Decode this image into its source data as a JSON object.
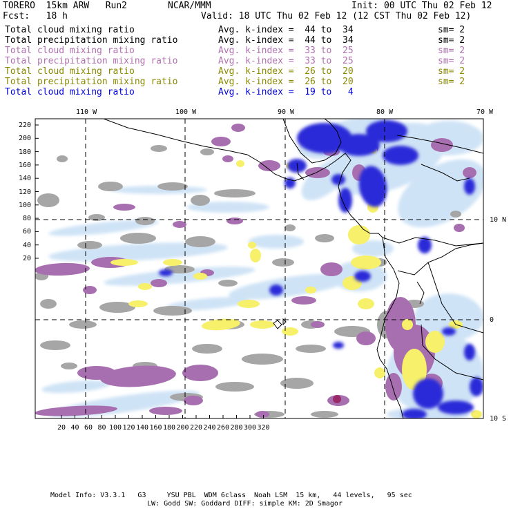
{
  "header": {
    "model": "TORERO  15km ARW   Run2",
    "org": "NCAR/MMM",
    "init": "Init: 00 UTC Thu 02 Feb 12",
    "fcst": "Fcst:   18 h",
    "valid": "Valid: 18 UTC Thu 02 Feb 12 (12 CST Thu 02 Feb 12)"
  },
  "legend": [
    {
      "field": "Total cloud mixing ratio",
      "idx": "Avg. k-index =  44 to  34",
      "sm": "sm= 2",
      "color": "#000000"
    },
    {
      "field": "Total precipitation mixing ratio",
      "idx": "Avg. k-index =  44 to  34",
      "sm": "sm= 2",
      "color": "#000000"
    },
    {
      "field": "Total cloud mixing ratio",
      "idx": "Avg. k-index =  33 to  25",
      "sm": "sm= 2",
      "color": "#b070b0"
    },
    {
      "field": "Total precipitation mixing ratio",
      "idx": "Avg. k-index =  33 to  25",
      "sm": "sm= 2",
      "color": "#b070b0"
    },
    {
      "field": "Total cloud mixing ratio",
      "idx": "Avg. k-index =  26 to  20",
      "sm": "sm= 2",
      "color": "#8a8a00"
    },
    {
      "field": "Total precipitation mixing ratio",
      "idx": "Avg. k-index =  26 to  20",
      "sm": "sm= 2",
      "color": "#8a8a00"
    },
    {
      "field": "Total cloud mixing ratio",
      "idx": "Avg. k-index =  19 to   4",
      "sm": "",
      "color": "#0000dd"
    }
  ],
  "axes": {
    "top_lon": [
      "110 W",
      "100 W",
      "90 W",
      "80 W",
      "70 W"
    ],
    "right_lat": [
      "10 N",
      "0",
      "10 S"
    ],
    "left_y": [
      "220",
      "200",
      "180",
      "160",
      "140",
      "120",
      "100",
      "80",
      "60",
      "40",
      "20"
    ],
    "bottom_x": [
      "20",
      "40",
      "60",
      "80",
      "100",
      "120",
      "140",
      "160",
      "180",
      "200",
      "220",
      "240",
      "260",
      "280",
      "300",
      "320"
    ]
  },
  "colors": {
    "gray": "#a6a6a6",
    "purple": "#a86fb0",
    "yellow": "#f6f06a",
    "lightblue": "#cfe3f6",
    "blue": "#2a2ad8",
    "darkblue": "#0000e0"
  },
  "footer": {
    "line1": "Model Info: V3.3.1   G3     YSU PBL  WDM 6class  Noah LSM  15 km,   44 levels,   95 sec",
    "line2": "LW: Godd SW: Goddard DIFF: simple KM: 2D Smagor"
  }
}
